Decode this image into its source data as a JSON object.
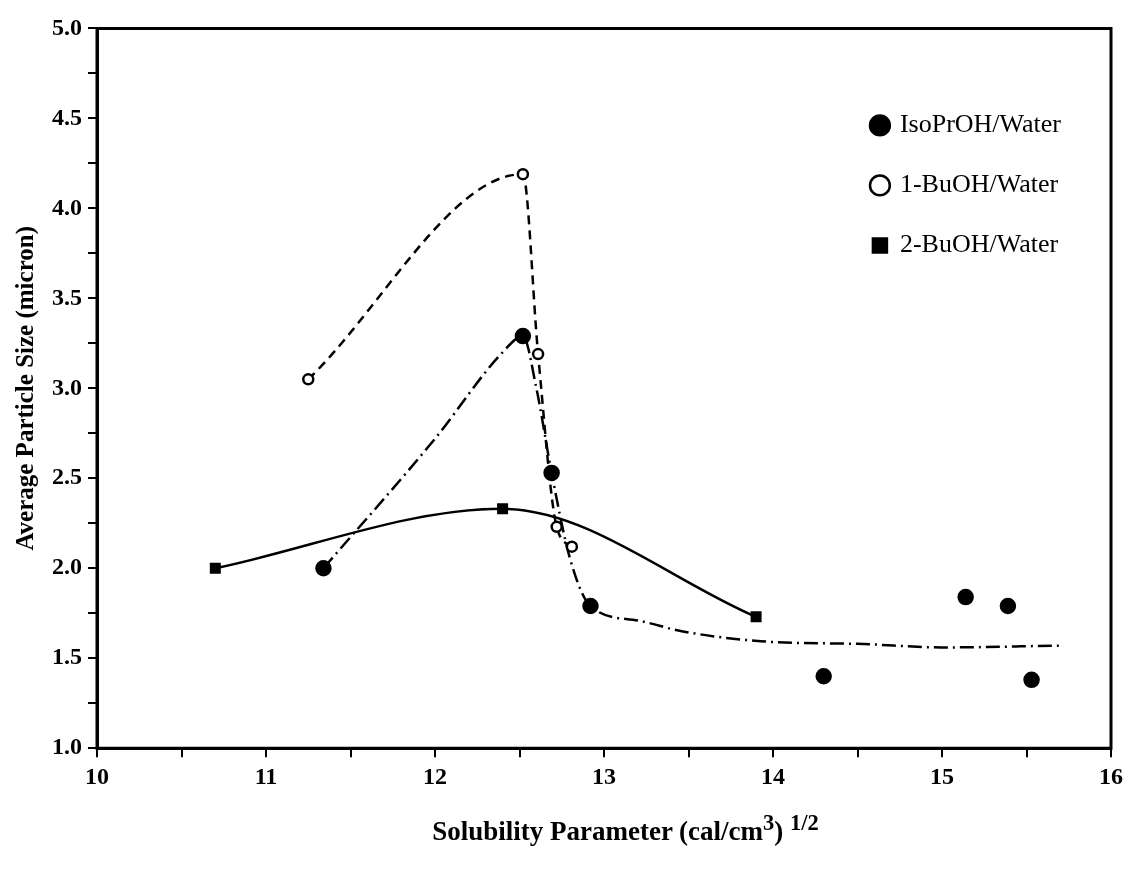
{
  "chart_data": {
    "type": "line",
    "xlabel": "Solubility Parameter (cal/cm$^{3}$) $^{1/2}$",
    "ylabel": "Average Particle Size (micron)",
    "xlim": [
      10,
      16
    ],
    "xticks": [
      10,
      {
        "value": 10.5,
        "label": null
      },
      11,
      {
        "value": 11.5,
        "label": null
      },
      12,
      {
        "value": 12.5,
        "label": null
      },
      13,
      {
        "value": 13.5,
        "label": null
      },
      14,
      {
        "value": 14.5,
        "label": null
      },
      15,
      {
        "value": 15.5,
        "label": null
      },
      16
    ],
    "ylim": [
      1.0,
      5.0
    ],
    "yticks": [
      {
        "value": 1.0,
        "label": "1.0"
      },
      {
        "value": 1.25,
        "label": null
      },
      {
        "value": 1.5,
        "label": "1.5"
      },
      {
        "value": 1.75,
        "label": null
      },
      {
        "value": 2.0,
        "label": "2.0"
      },
      {
        "value": 2.25,
        "label": null
      },
      {
        "value": 2.5,
        "label": "2.5"
      },
      {
        "value": 2.75,
        "label": null
      },
      {
        "value": 3.0,
        "label": "3.0"
      },
      {
        "value": 3.25,
        "label": null
      },
      {
        "value": 3.5,
        "label": "3.5"
      },
      {
        "value": 3.75,
        "label": null
      },
      {
        "value": 4.0,
        "label": "4.0"
      },
      {
        "value": 4.25,
        "label": null
      },
      {
        "value": 4.5,
        "label": "4.5"
      },
      {
        "value": 4.75,
        "label": null
      },
      {
        "value": 5.0,
        "label": "5.0"
      }
    ],
    "grid": false,
    "legend": "top right",
    "series": [
      {
        "name": "IsoPrOH/Water",
        "type": "scatter",
        "color": "#000000",
        "marker": "circle",
        "line_style": "dashdot",
        "x": [
          11.34,
          12.52,
          12.69,
          12.92,
          14.3,
          15.14,
          15.39,
          15.53
        ],
        "values": [
          2.0,
          3.29,
          2.53,
          1.79,
          1.4,
          1.84,
          1.79,
          1.38
        ]
      },
      {
        "name": "1-BuOH/Water",
        "type": "line",
        "color": "#000000",
        "marker": "circle-open",
        "line_style": "dashed",
        "x": [
          11.25,
          12.52,
          12.61,
          12.72,
          12.81
        ],
        "values": [
          3.05,
          4.19,
          3.19,
          2.23,
          2.12
        ]
      },
      {
        "name": "2-BuOH/Water",
        "type": "line",
        "color": "#000000",
        "marker": "square",
        "line_style": "solid",
        "x": [
          10.7,
          12.4,
          13.9
        ],
        "values": [
          2.0,
          2.33,
          1.73
        ]
      },
      {
        "type": "line",
        "color": "#000000",
        "marker": "none",
        "line_style": "dashdot",
        "x": [
          11.34,
          12.0,
          12.4,
          12.52,
          12.6,
          12.69,
          12.8,
          12.92,
          13.2,
          13.46,
          14.0,
          14.5,
          15.0,
          15.7
        ],
        "values": [
          2.0,
          2.72,
          3.2,
          3.29,
          3.0,
          2.53,
          2.05,
          1.79,
          1.71,
          1.65,
          1.59,
          1.58,
          1.56,
          1.57
        ]
      }
    ]
  }
}
